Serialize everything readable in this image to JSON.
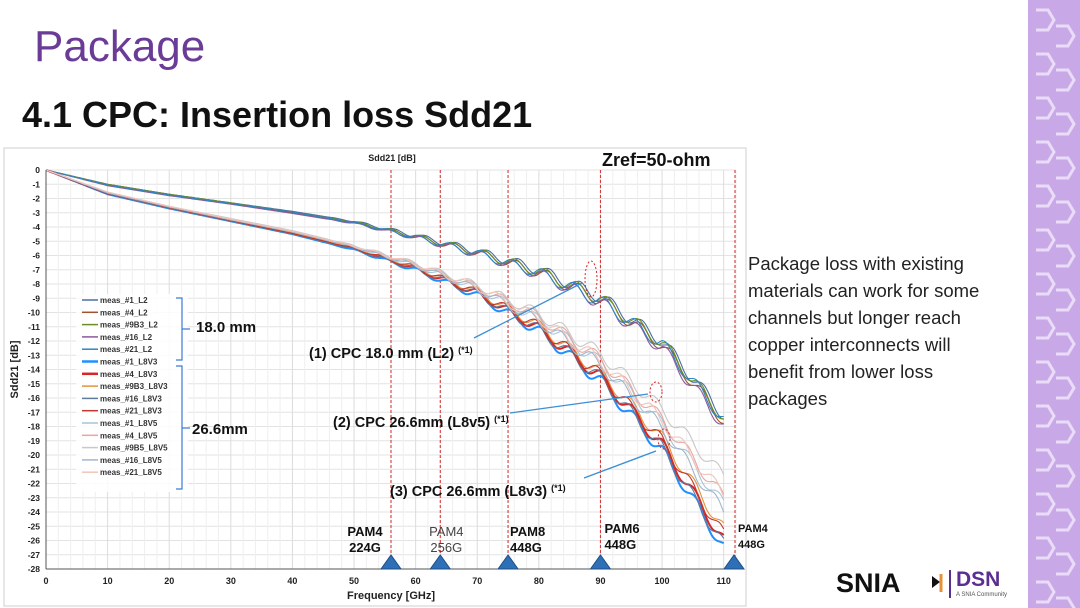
{
  "slide": {
    "title": "Package",
    "subtitle": "4.1 CPC: Insertion loss Sdd21",
    "description": "Package loss with existing materials can work for some channels but longer reach copper interconnects will benefit from lower loss packages",
    "accent_color": "#6a3b97",
    "side_band_color": "#c9a8e8"
  },
  "logo": {
    "snia": "SNIA",
    "dsn": "DSN",
    "dsn_sub": "A SNIA Community"
  },
  "chart_data": {
    "type": "line",
    "title": "Sdd21 [dB]",
    "annotation_zref": "Zref=50-ohm",
    "xlabel": "Frequency [GHz]",
    "ylabel": "Sdd21 [dB]",
    "xlim": [
      0,
      112
    ],
    "ylim": [
      -28,
      0
    ],
    "x_ticks": [
      0,
      10,
      20,
      30,
      40,
      50,
      60,
      70,
      80,
      90,
      100,
      110
    ],
    "y_ticks": [
      0,
      -1,
      -2,
      -3,
      -4,
      -5,
      -6,
      -7,
      -8,
      -9,
      -10,
      -11,
      -12,
      -13,
      -14,
      -15,
      -16,
      -17,
      -18,
      -19,
      -20,
      -21,
      -22,
      -23,
      -24,
      -25,
      -26,
      -27,
      -28
    ],
    "markers": [
      {
        "label": "PAM4",
        "sub": "224G",
        "x": 56,
        "bold": true
      },
      {
        "label": "PAM4",
        "sub": "256G",
        "x": 64,
        "bold": false
      },
      {
        "label": "PAM8",
        "sub": "448G",
        "x": 75,
        "bold": true
      },
      {
        "label": "PAM6",
        "sub": "448G",
        "x": 90,
        "bold": true
      },
      {
        "label": "PAM4",
        "sub": "448G",
        "x": 112,
        "bold": true
      }
    ],
    "group_labels": {
      "g18": "18.0 mm",
      "g26": "26.6mm"
    },
    "callouts": [
      {
        "text": "(1) CPC 18.0 mm (L2)",
        "note": "(*1)"
      },
      {
        "text": "(2) CPC 26.6mm (L8v5)",
        "note": "(*1)"
      },
      {
        "text": "(3) CPC 26.6mm (L8v3)",
        "note": "(*1)"
      }
    ],
    "series": [
      {
        "name": "meas_#1_L2",
        "color": "#4a6fa5",
        "x": [
          0,
          10,
          20,
          30,
          40,
          50,
          60,
          70,
          80,
          90,
          100,
          110
        ],
        "values": [
          0,
          -1.0,
          -1.7,
          -2.3,
          -2.9,
          -3.6,
          -4.6,
          -5.7,
          -7.0,
          -8.9,
          -12.0,
          -17.2
        ]
      },
      {
        "name": "meas_#4_L2",
        "color": "#a0522d",
        "x": [
          0,
          10,
          20,
          30,
          40,
          50,
          60,
          70,
          80,
          90,
          100,
          110
        ],
        "values": [
          0,
          -1.05,
          -1.75,
          -2.35,
          -3.0,
          -3.7,
          -4.7,
          -5.8,
          -7.2,
          -9.1,
          -12.3,
          -17.6
        ]
      },
      {
        "name": "meas_#9B3_L2",
        "color": "#6b8e23",
        "x": [
          0,
          10,
          20,
          30,
          40,
          50,
          60,
          70,
          80,
          90,
          100,
          110
        ],
        "values": [
          0,
          -1.0,
          -1.7,
          -2.3,
          -2.95,
          -3.65,
          -4.65,
          -5.75,
          -7.1,
          -9.0,
          -12.1,
          -17.4
        ]
      },
      {
        "name": "meas_#16_L2",
        "color": "#8b5a9c",
        "x": [
          0,
          10,
          20,
          30,
          40,
          50,
          60,
          70,
          80,
          90,
          100,
          110
        ],
        "values": [
          0,
          -1.1,
          -1.8,
          -2.4,
          -3.05,
          -3.75,
          -4.75,
          -5.9,
          -7.3,
          -9.3,
          -12.5,
          -17.9
        ]
      },
      {
        "name": "meas_#21_L2",
        "color": "#2e86c1",
        "x": [
          0,
          10,
          20,
          30,
          40,
          50,
          60,
          70,
          80,
          90,
          100,
          110
        ],
        "values": [
          0,
          -1.05,
          -1.75,
          -2.35,
          -2.95,
          -3.7,
          -4.7,
          -5.85,
          -7.2,
          -9.2,
          -12.2,
          -17.5
        ]
      },
      {
        "name": "meas_#1_L8V3",
        "color": "#1e90ff",
        "x": [
          0,
          10,
          20,
          30,
          40,
          50,
          60,
          70,
          80,
          90,
          100,
          110
        ],
        "values": [
          0,
          -1.7,
          -2.7,
          -3.6,
          -4.5,
          -5.6,
          -7.0,
          -8.8,
          -11.3,
          -14.8,
          -19.7,
          -26.5
        ]
      },
      {
        "name": "meas_#4_L8V3",
        "color": "#d62728",
        "x": [
          0,
          10,
          20,
          30,
          40,
          50,
          60,
          70,
          80,
          90,
          100,
          110
        ],
        "values": [
          0,
          -1.65,
          -2.65,
          -3.55,
          -4.45,
          -5.5,
          -6.9,
          -8.6,
          -11.1,
          -14.5,
          -19.3,
          -26.0
        ]
      },
      {
        "name": "meas_#9B3_L8V3",
        "color": "#e69138",
        "x": [
          0,
          10,
          20,
          30,
          40,
          50,
          60,
          70,
          80,
          90,
          100,
          110
        ],
        "values": [
          0,
          -1.6,
          -2.6,
          -3.5,
          -4.4,
          -5.45,
          -6.8,
          -8.5,
          -10.9,
          -14.2,
          -18.8,
          -25.2
        ]
      },
      {
        "name": "meas_#16_L8V3",
        "color": "#5d7b9d",
        "x": [
          0,
          10,
          20,
          30,
          40,
          50,
          60,
          70,
          80,
          90,
          100,
          110
        ],
        "values": [
          0,
          -1.65,
          -2.7,
          -3.6,
          -4.5,
          -5.55,
          -6.95,
          -8.7,
          -11.2,
          -14.6,
          -19.5,
          -26.3
        ]
      },
      {
        "name": "meas_#21_L8V3",
        "color": "#c0392b",
        "x": [
          0,
          10,
          20,
          30,
          40,
          50,
          60,
          70,
          80,
          90,
          100,
          110
        ],
        "values": [
          0,
          -1.6,
          -2.65,
          -3.55,
          -4.45,
          -5.5,
          -6.85,
          -8.6,
          -11.0,
          -14.4,
          -19.0,
          -25.6
        ]
      },
      {
        "name": "meas_#1_L8V5",
        "color": "#a9c4d8",
        "x": [
          0,
          10,
          20,
          30,
          40,
          50,
          60,
          70,
          80,
          90,
          100,
          110
        ],
        "values": [
          0,
          -1.6,
          -2.6,
          -3.5,
          -4.35,
          -5.4,
          -6.7,
          -8.3,
          -10.5,
          -13.5,
          -17.8,
          -23.5
        ]
      },
      {
        "name": "meas_#4_L8V5",
        "color": "#e8a7a0",
        "x": [
          0,
          10,
          20,
          30,
          40,
          50,
          60,
          70,
          80,
          90,
          100,
          110
        ],
        "values": [
          0,
          -1.55,
          -2.55,
          -3.45,
          -4.3,
          -5.35,
          -6.6,
          -8.2,
          -10.3,
          -13.3,
          -17.5,
          -23.0
        ]
      },
      {
        "name": "meas_#9B5_L8V5",
        "color": "#c8c8c8",
        "x": [
          0,
          10,
          20,
          30,
          40,
          50,
          60,
          70,
          80,
          90,
          100,
          110
        ],
        "values": [
          0,
          -1.55,
          -2.55,
          -3.4,
          -4.25,
          -5.3,
          -6.55,
          -8.1,
          -10.1,
          -12.9,
          -16.8,
          -21.5
        ]
      },
      {
        "name": "meas_#16_L8V5",
        "color": "#9fb7cc",
        "x": [
          0,
          10,
          20,
          30,
          40,
          50,
          60,
          70,
          80,
          90,
          100,
          110
        ],
        "values": [
          0,
          -1.6,
          -2.6,
          -3.5,
          -4.35,
          -5.4,
          -6.7,
          -8.35,
          -10.6,
          -13.7,
          -18.1,
          -24.0
        ]
      },
      {
        "name": "meas_#21_L8V5",
        "color": "#f2c4b8",
        "x": [
          0,
          10,
          20,
          30,
          40,
          50,
          60,
          70,
          80,
          90,
          100,
          110
        ],
        "values": [
          0,
          -1.55,
          -2.55,
          -3.45,
          -4.3,
          -5.35,
          -6.6,
          -8.2,
          -10.4,
          -13.4,
          -17.6,
          -22.8
        ]
      }
    ]
  }
}
